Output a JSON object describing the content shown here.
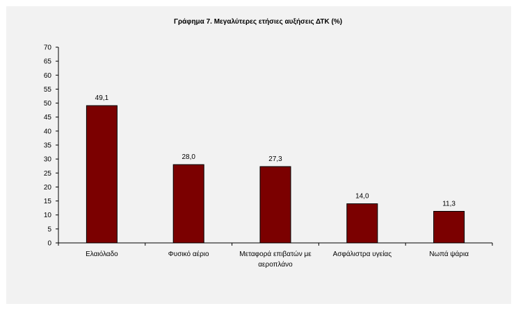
{
  "chart_data": {
    "type": "bar",
    "title": "Γράφημα 7. Μεγαλύτερες ετήσιες αυξήσεις ΔΤΚ (%)",
    "categories": [
      [
        "Ελαιόλαδο"
      ],
      [
        "Φυσικό αέριο"
      ],
      [
        "Μεταφορά επιβατών με",
        "αεροπλάνο"
      ],
      [
        "Ασφάλιστρα υγείας"
      ],
      [
        "Νωπά ψάρια"
      ]
    ],
    "values": [
      49.1,
      28.0,
      27.3,
      14.0,
      11.3
    ],
    "data_labels": [
      "49,1",
      "28,0",
      "27,3",
      "14,0",
      "11,3"
    ],
    "ylim": [
      0,
      70
    ],
    "yticks": [
      0,
      5,
      10,
      15,
      20,
      25,
      30,
      35,
      40,
      45,
      50,
      55,
      60,
      65,
      70
    ],
    "xlabel": "",
    "ylabel": "",
    "grid": false,
    "legend": "none",
    "colors": {
      "bar_fill": "#7b0000",
      "bar_stroke": "#000000",
      "panel_bg": "#f2f2f2"
    }
  }
}
